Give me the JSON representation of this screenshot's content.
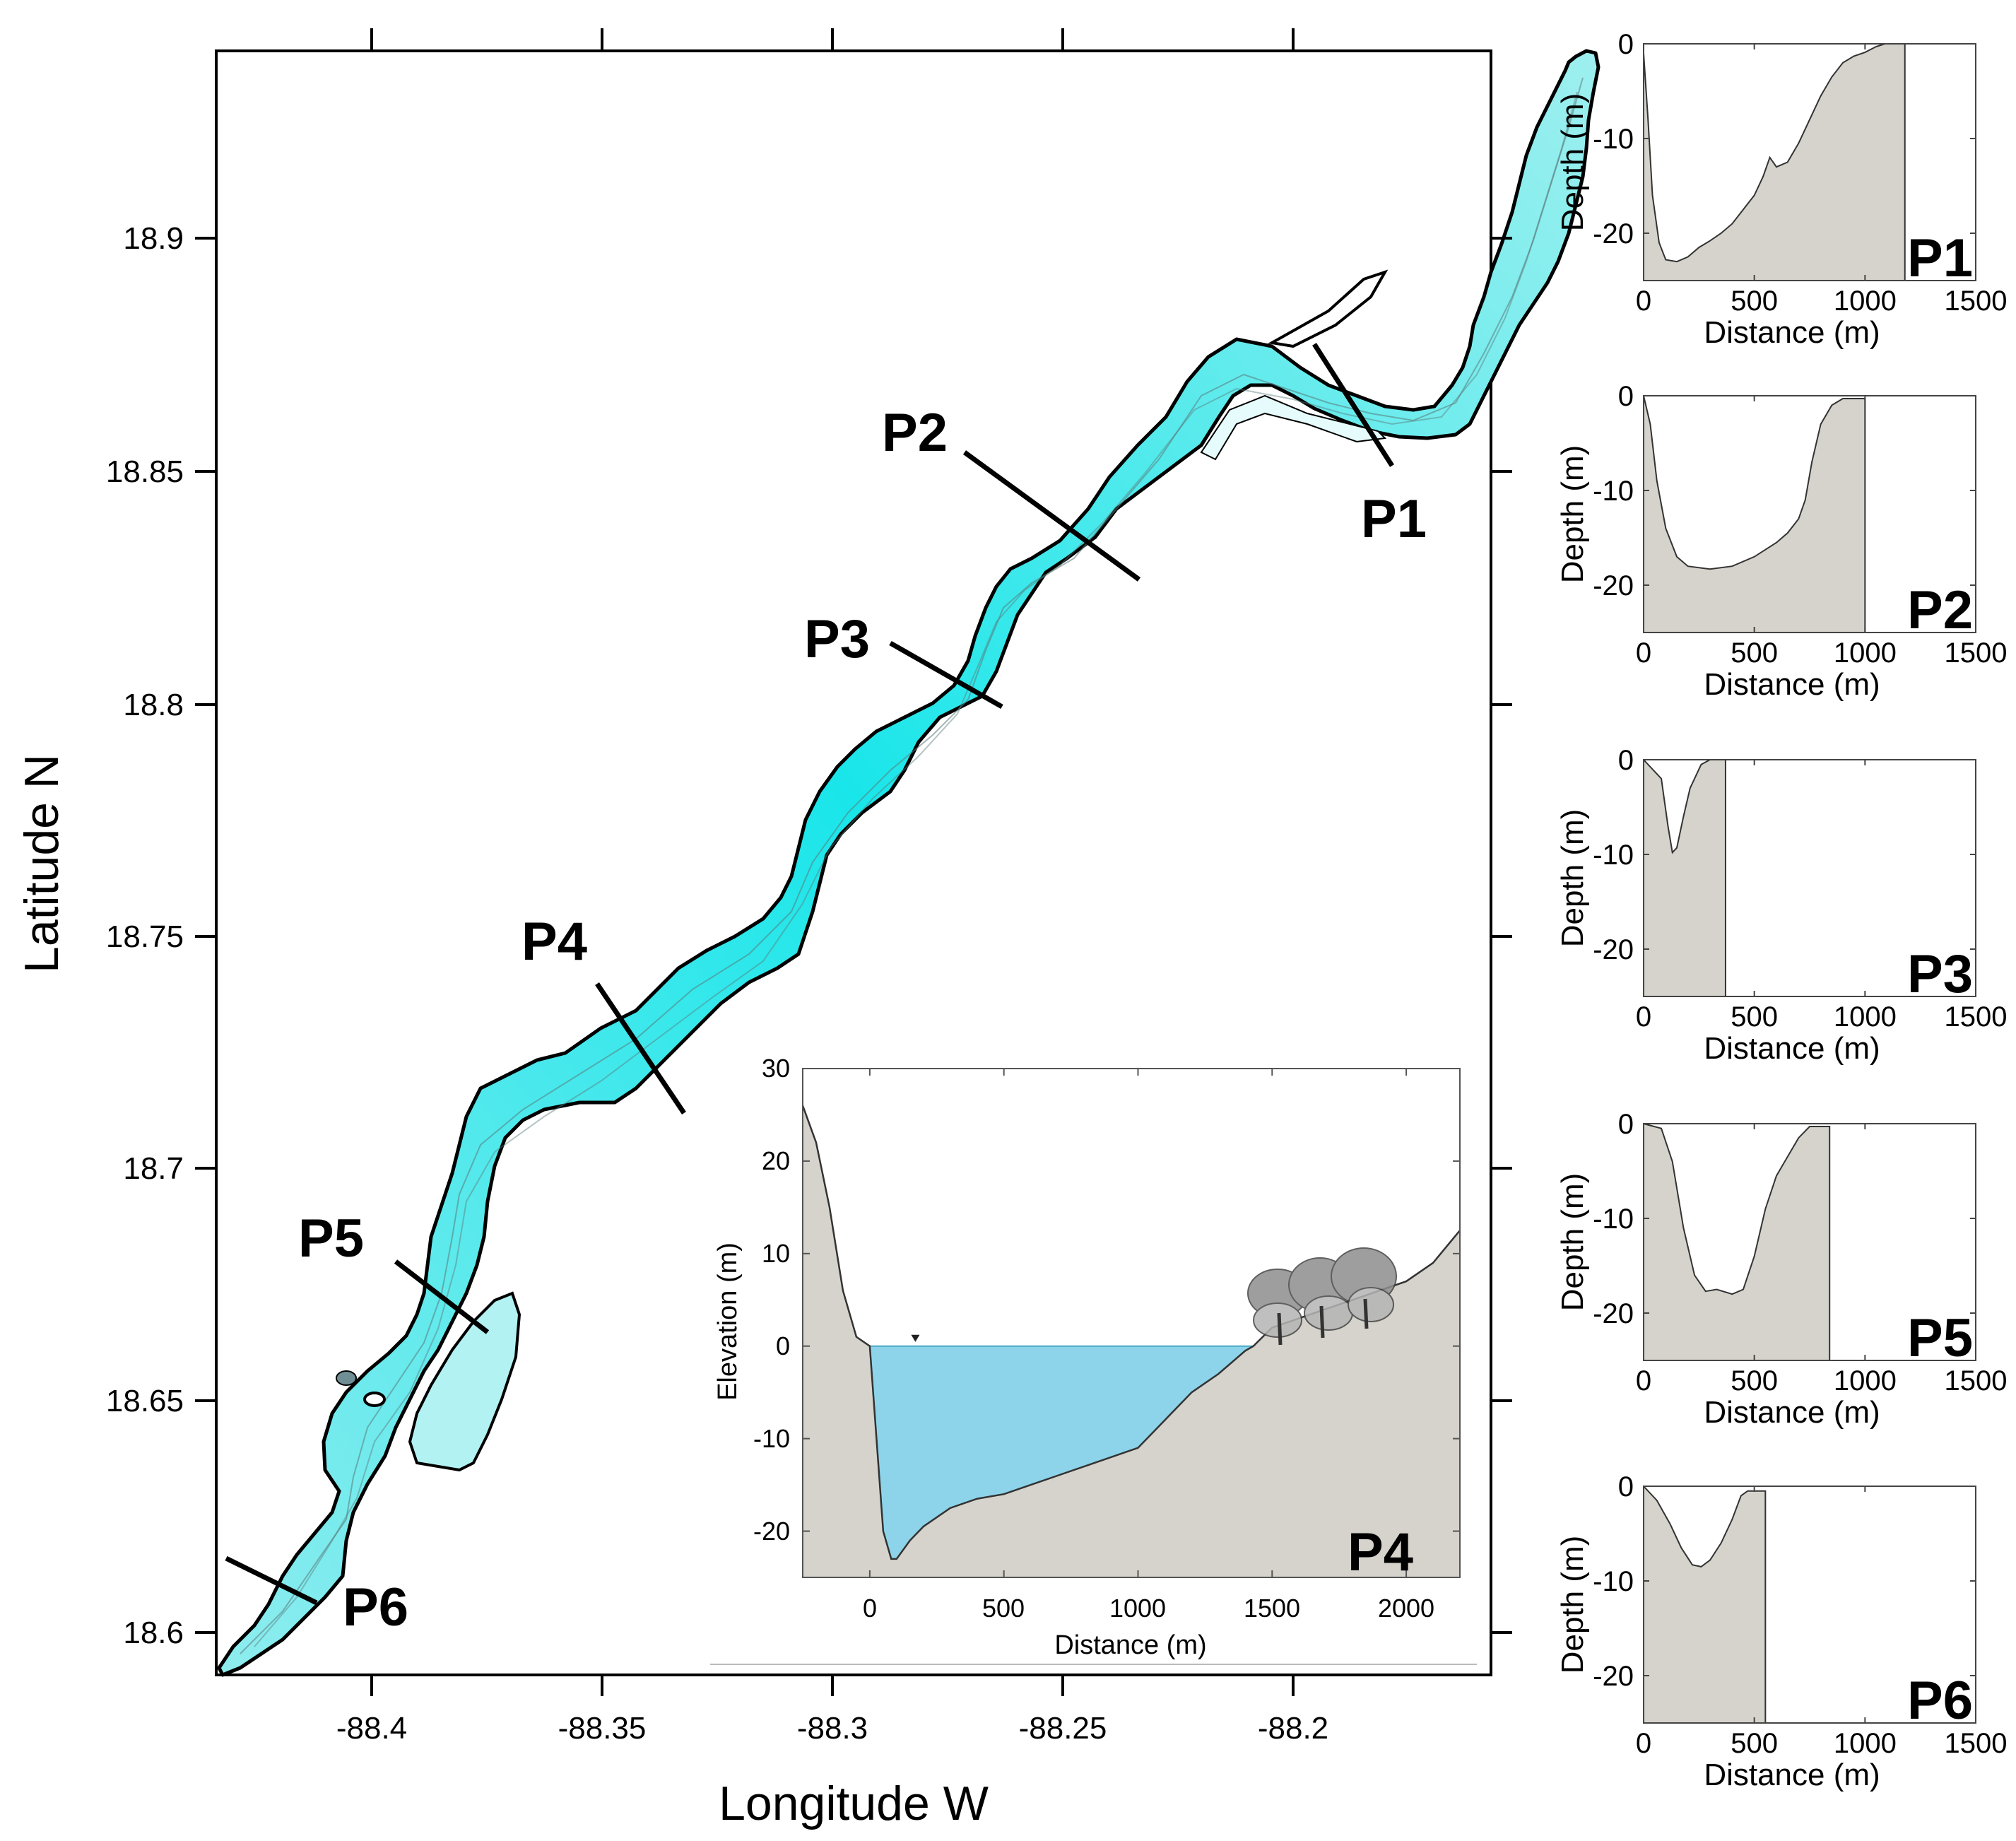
{
  "map": {
    "xlabel": "Longitude W",
    "ylabel": "Latitude N",
    "x_ticks": [
      "-88.4",
      "-88.35",
      "-88.3",
      "-88.25",
      "-88.2"
    ],
    "y_ticks": [
      "18.9",
      "18.85",
      "18.8",
      "18.75",
      "18.7",
      "18.65",
      "18.6"
    ],
    "profile_labels": [
      "P1",
      "P2",
      "P3",
      "P4",
      "P5",
      "P6"
    ],
    "colors": {
      "water": "#19e6ea",
      "shallow": "#bff4f5",
      "outline": "#000000"
    }
  },
  "inset": {
    "label": "P4",
    "xlabel": "Distance (m)",
    "ylabel": "Elevation (m)",
    "x_ticks": [
      "0",
      "500",
      "1000",
      "1500",
      "2000"
    ],
    "y_ticks": [
      "30",
      "20",
      "10",
      "0",
      "-10",
      "-20"
    ],
    "colors": {
      "water": "#8dd4ea",
      "ground": "#d6d3cc"
    },
    "vegetation_icon": "tree-icon"
  },
  "chart_data": [
    {
      "type": "area",
      "panel": "P1",
      "xlabel": "Distance (m)",
      "ylabel": "Depth (m)",
      "xlim": [
        0,
        1500
      ],
      "ylim": [
        -25,
        0
      ],
      "x_ticks": [
        "0",
        "500",
        "1000",
        "1500"
      ],
      "y_ticks": [
        "0",
        "-10",
        "-20"
      ],
      "x": [
        0,
        20,
        40,
        70,
        100,
        150,
        200,
        250,
        300,
        350,
        400,
        450,
        500,
        540,
        570,
        600,
        650,
        700,
        750,
        800,
        850,
        900,
        950,
        1000,
        1050,
        1090,
        1180
      ],
      "y": [
        -1,
        -8,
        -16,
        -21,
        -22.8,
        -23,
        -22.5,
        -21.5,
        -20.8,
        -20,
        -19,
        -17.5,
        -16,
        -14,
        -12,
        -13,
        -12.5,
        -10.5,
        -8,
        -5.5,
        -3.5,
        -2,
        -1.3,
        -0.9,
        -0.3,
        0,
        0
      ]
    },
    {
      "type": "area",
      "panel": "P2",
      "xlabel": "Distance (m)",
      "ylabel": "Depth (m)",
      "xlim": [
        0,
        1500
      ],
      "ylim": [
        -25,
        0
      ],
      "x_ticks": [
        "0",
        "500",
        "1000",
        "1500"
      ],
      "y_ticks": [
        "0",
        "-10",
        "-20"
      ],
      "x": [
        0,
        30,
        60,
        100,
        150,
        200,
        300,
        400,
        500,
        600,
        650,
        700,
        730,
        760,
        800,
        850,
        900,
        1000
      ],
      "y": [
        0,
        -3,
        -9,
        -14,
        -17,
        -18,
        -18.3,
        -18,
        -17,
        -15.5,
        -14.5,
        -13,
        -11,
        -7,
        -3,
        -1,
        -0.3,
        -0.3
      ]
    },
    {
      "type": "area",
      "panel": "P3",
      "xlabel": "Distance (m)",
      "ylabel": "Depth (m)",
      "xlim": [
        0,
        1500
      ],
      "ylim": [
        -25,
        0
      ],
      "x_ticks": [
        "0",
        "500",
        "1000",
        "1500"
      ],
      "y_ticks": [
        "0",
        "-10",
        "-20"
      ],
      "x": [
        0,
        80,
        110,
        130,
        150,
        180,
        210,
        260,
        300,
        370
      ],
      "y": [
        0,
        -2,
        -7,
        -9.8,
        -9.3,
        -6,
        -3,
        -0.5,
        0,
        0
      ]
    },
    {
      "type": "area",
      "panel": "P5",
      "xlabel": "Distance (m)",
      "ylabel": "Depth (m)",
      "xlim": [
        0,
        1500
      ],
      "ylim": [
        -25,
        0
      ],
      "x_ticks": [
        "0",
        "500",
        "1000",
        "1500"
      ],
      "y_ticks": [
        "0",
        "-10",
        "-20"
      ],
      "x": [
        0,
        80,
        130,
        180,
        230,
        280,
        330,
        400,
        450,
        500,
        550,
        600,
        650,
        700,
        750,
        840
      ],
      "y": [
        0,
        -0.5,
        -4,
        -11,
        -16,
        -17.7,
        -17.5,
        -18,
        -17.5,
        -14,
        -9,
        -5.5,
        -3.5,
        -1.5,
        -0.3,
        -0.3
      ]
    },
    {
      "type": "area",
      "panel": "P6",
      "xlabel": "Distance (m)",
      "ylabel": "Depth (m)",
      "xlim": [
        0,
        1500
      ],
      "ylim": [
        -25,
        0
      ],
      "x_ticks": [
        "0",
        "500",
        "1000",
        "1500"
      ],
      "y_ticks": [
        "0",
        "-10",
        "-20"
      ],
      "x": [
        0,
        60,
        120,
        170,
        220,
        260,
        300,
        350,
        400,
        440,
        470,
        550
      ],
      "y": [
        0,
        -1.5,
        -4,
        -6.5,
        -8.3,
        -8.5,
        -7.8,
        -6,
        -3.5,
        -1,
        -0.5,
        -0.5
      ]
    },
    {
      "type": "area",
      "panel": "P4",
      "xlabel": "Distance (m)",
      "ylabel": "Elevation (m)",
      "xlim": [
        -250,
        2200
      ],
      "ylim": [
        -25,
        30
      ],
      "x_ticks": [
        "0",
        "500",
        "1000",
        "1500",
        "2000"
      ],
      "y_ticks": [
        "30",
        "20",
        "10",
        "0",
        "-10",
        "-20"
      ],
      "x": [
        -250,
        -200,
        -150,
        -100,
        -50,
        0,
        50,
        80,
        100,
        150,
        200,
        300,
        400,
        500,
        600,
        700,
        800,
        900,
        1000,
        1100,
        1200,
        1300,
        1400,
        1430,
        1500,
        1600,
        1700,
        1800,
        1900,
        2000,
        2100,
        2200
      ],
      "y": [
        26,
        22,
        15,
        6,
        1,
        0,
        -20,
        -23,
        -23,
        -21,
        -19.5,
        -17.5,
        -16.5,
        -16,
        -15,
        -14,
        -13,
        -12,
        -11,
        -8,
        -5,
        -3,
        -0.5,
        0,
        2,
        3,
        4,
        5,
        6,
        7,
        9,
        12.5
      ],
      "water_level": 0,
      "water_extent": [
        0,
        1430
      ]
    }
  ]
}
